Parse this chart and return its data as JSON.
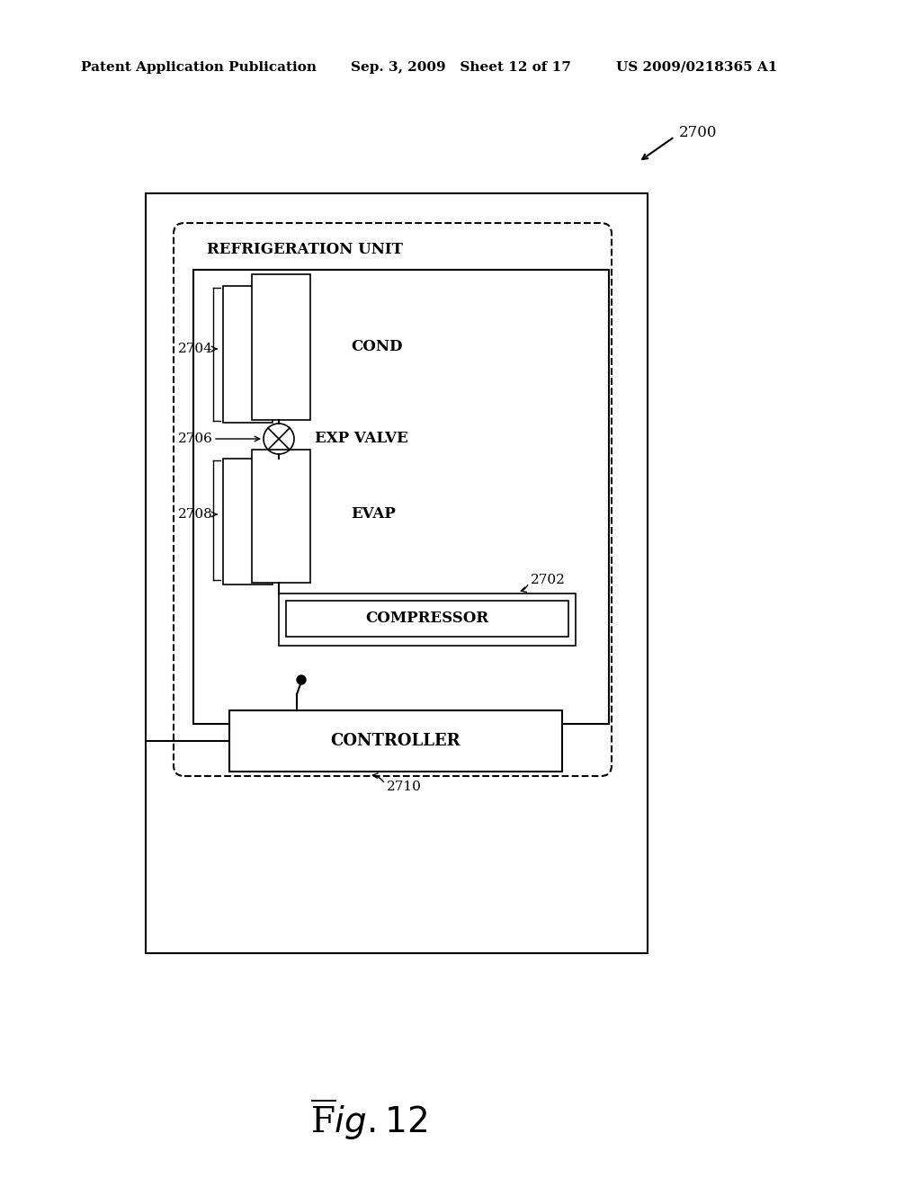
{
  "bg_color": "#ffffff",
  "header_left": "Patent Application Publication",
  "header_mid": "Sep. 3, 2009   Sheet 12 of 17",
  "header_right": "US 2009/0218365 A1",
  "fig_label": "Fig. 12",
  "label_2700": "2700",
  "label_2702": "2702",
  "label_2704": "2704",
  "label_2706": "2706",
  "label_2708": "2708",
  "label_2710": "2710",
  "text_refrig": "REFRIGERATION UNIT",
  "text_cond": "COND",
  "text_exp": "EXP VALVE",
  "text_evap": "EVAP",
  "text_comp": "COMPRESSOR",
  "text_ctrl": "CONTROLLER"
}
